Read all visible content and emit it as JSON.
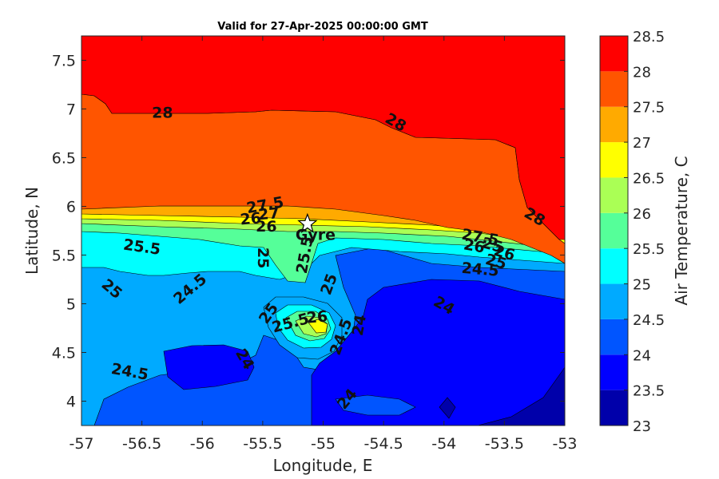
{
  "chart_data": {
    "type": "heatmap",
    "subtype": "filled-contour",
    "title": "Valid for 27-Apr-2025 00:00:00 GMT",
    "xlabel": "Longitude, E",
    "ylabel": "Latitude, N",
    "xlim": [
      -57,
      -53
    ],
    "ylim": [
      3.75,
      7.75
    ],
    "x_ticks": [
      -57,
      -56.5,
      -56,
      -55.5,
      -55,
      -54.5,
      -54,
      -53.5,
      -53
    ],
    "x_tick_labels": [
      "-57",
      "-56.5",
      "-56",
      "-55.5",
      "-55",
      "-54.5",
      "-54",
      "-53.5",
      "-53"
    ],
    "y_ticks": [
      4,
      4.5,
      5,
      5.5,
      6,
      6.5,
      7,
      7.5
    ],
    "y_tick_labels": [
      "4",
      "4.5",
      "5",
      "5.5",
      "6",
      "6.5",
      "7",
      "7.5"
    ],
    "colorbar": {
      "label": "Air Temperature, C",
      "range": [
        23,
        28.5
      ],
      "levels": [
        23,
        23.5,
        24,
        24.5,
        25,
        25.5,
        26,
        26.5,
        27,
        27.5,
        28,
        28.5
      ],
      "tick_labels": [
        "23",
        "23.5",
        "24",
        "24.5",
        "25",
        "25.5",
        "26",
        "26.5",
        "27",
        "27.5",
        "28",
        "28.5"
      ],
      "colors": [
        "#0000aa",
        "#0000ff",
        "#0055ff",
        "#00aaff",
        "#00ffff",
        "#55ff99",
        "#aaff55",
        "#ffff00",
        "#ffaa00",
        "#ff5500",
        "#ff0000",
        "#aa0000"
      ]
    },
    "regions": [
      {
        "level_min": 27.5,
        "level_max": 28,
        "description": "northern open ocean, above ~6.3N in east, ~7N in west"
      },
      {
        "level_min": 27,
        "level_max": 27.5,
        "description": "band between ~5.9N and ~7N in west"
      },
      {
        "level_min": 25,
        "level_max": 26.5,
        "description": "narrow frontal band near 5.7N-5.9N"
      },
      {
        "level_min": 24,
        "level_max": 25,
        "description": "southern half, coastal zone"
      },
      {
        "level_min": 23.5,
        "level_max": 24,
        "description": "inland pockets near 4.3N and east of -54.8"
      },
      {
        "level_min": 23,
        "level_max": 23.5,
        "description": "southeast corner near -53"
      },
      {
        "level_min": 25.5,
        "level_max": 26.5,
        "description": "warm pocket near (-55, 4.75)"
      }
    ],
    "contour_labels": [
      {
        "text": "28",
        "x": -56.33,
        "y": 6.96,
        "angle": 0
      },
      {
        "text": "28",
        "x": -54.4,
        "y": 6.86,
        "angle": 30
      },
      {
        "text": "28",
        "x": -53.25,
        "y": 5.89,
        "angle": 30
      },
      {
        "text": "27.5",
        "x": -55.48,
        "y": 6.01,
        "angle": -10
      },
      {
        "text": "26",
        "x": -55.6,
        "y": 5.87,
        "angle": -5
      },
      {
        "text": "27",
        "x": -55.45,
        "y": 5.92,
        "angle": -5
      },
      {
        "text": "26",
        "x": -55.47,
        "y": 5.79,
        "angle": 0
      },
      {
        "text": "25.5",
        "x": -56.5,
        "y": 5.58,
        "angle": 8
      },
      {
        "text": "25",
        "x": -55.5,
        "y": 5.47,
        "angle": 90
      },
      {
        "text": "25.5",
        "x": -55.15,
        "y": 5.5,
        "angle": -80
      },
      {
        "text": "27.5",
        "x": -53.7,
        "y": 5.68,
        "angle": 10
      },
      {
        "text": "26",
        "x": -53.75,
        "y": 5.59,
        "angle": 10
      },
      {
        "text": "25",
        "x": -53.6,
        "y": 5.6,
        "angle": 15
      },
      {
        "text": "26",
        "x": -53.5,
        "y": 5.52,
        "angle": 15
      },
      {
        "text": "25",
        "x": -53.57,
        "y": 5.43,
        "angle": 15
      },
      {
        "text": "24.5",
        "x": -53.7,
        "y": 5.35,
        "angle": 5
      },
      {
        "text": "25",
        "x": -56.75,
        "y": 5.15,
        "angle": 40
      },
      {
        "text": "24.5",
        "x": -56.1,
        "y": 5.15,
        "angle": -40
      },
      {
        "text": "25",
        "x": -54.95,
        "y": 5.2,
        "angle": -70
      },
      {
        "text": "25",
        "x": -55.45,
        "y": 4.9,
        "angle": -55
      },
      {
        "text": "25.5",
        "x": -55.27,
        "y": 4.8,
        "angle": -15
      },
      {
        "text": "26",
        "x": -55.05,
        "y": 4.86,
        "angle": -5
      },
      {
        "text": "24.5",
        "x": -54.85,
        "y": 4.66,
        "angle": -70
      },
      {
        "text": "24",
        "x": -54.7,
        "y": 4.78,
        "angle": -80
      },
      {
        "text": "24",
        "x": -54,
        "y": 4.98,
        "angle": 30
      },
      {
        "text": "24",
        "x": -55.65,
        "y": 4.43,
        "angle": 60
      },
      {
        "text": "24.5",
        "x": -56.6,
        "y": 4.3,
        "angle": 10
      },
      {
        "text": "24",
        "x": -54.8,
        "y": 4.02,
        "angle": -50
      }
    ],
    "station": {
      "name": "Gyre",
      "lon": -55.13,
      "lat": 5.82
    }
  }
}
